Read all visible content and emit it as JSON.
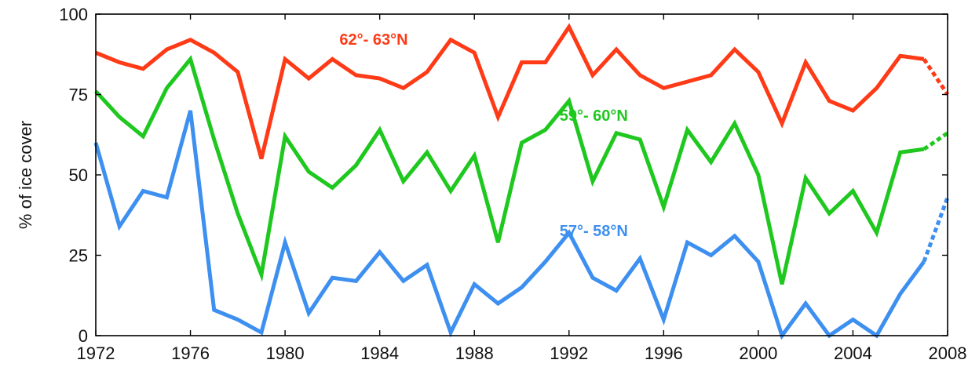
{
  "chart_data": {
    "type": "line",
    "title": "",
    "xlabel": "",
    "ylabel": "% of ice cover",
    "xlim": [
      1972,
      2008
    ],
    "ylim": [
      0,
      100
    ],
    "xticks": [
      1972,
      1976,
      1980,
      1984,
      1988,
      1992,
      1996,
      2000,
      2004,
      2008
    ],
    "yticks": [
      0,
      25,
      50,
      75,
      100
    ],
    "grid": false,
    "legend": "none",
    "series": [
      {
        "name": "62°- 63°N",
        "color": "#ff3a17",
        "x": [
          1972,
          1973,
          1974,
          1975,
          1976,
          1977,
          1978,
          1979,
          1980,
          1981,
          1982,
          1983,
          1984,
          1985,
          1986,
          1987,
          1988,
          1989,
          1990,
          1991,
          1992,
          1993,
          1994,
          1995,
          1996,
          1997,
          1998,
          1999,
          2000,
          2001,
          2002,
          2003,
          2004,
          2005,
          2006,
          2007
        ],
        "values": [
          88,
          85,
          83,
          89,
          92,
          88,
          82,
          55,
          86,
          80,
          86,
          81,
          80,
          77,
          82,
          92,
          88,
          68,
          85,
          85,
          96,
          81,
          89,
          81,
          77,
          79,
          81,
          89,
          82,
          66,
          85,
          73,
          70,
          77,
          87,
          86
        ],
        "projected_x": [
          2007,
          2008
        ],
        "projected_values": [
          86,
          75
        ]
      },
      {
        "name": "59°- 60°N",
        "color": "#1ec81e",
        "x": [
          1972,
          1973,
          1974,
          1975,
          1976,
          1977,
          1978,
          1979,
          1980,
          1981,
          1982,
          1983,
          1984,
          1985,
          1986,
          1987,
          1988,
          1989,
          1990,
          1991,
          1992,
          1993,
          1994,
          1995,
          1996,
          1997,
          1998,
          1999,
          2000,
          2001,
          2002,
          2003,
          2004,
          2005,
          2006,
          2007
        ],
        "values": [
          76,
          68,
          62,
          77,
          86,
          61,
          38,
          19,
          62,
          51,
          46,
          53,
          64,
          48,
          57,
          45,
          56,
          29,
          60,
          64,
          73,
          48,
          63,
          61,
          40,
          64,
          54,
          66,
          50,
          16,
          49,
          38,
          45,
          32,
          57,
          58
        ],
        "projected_x": [
          2007,
          2008
        ],
        "projected_values": [
          58,
          63
        ]
      },
      {
        "name": "57°- 58°N",
        "color": "#3d8ff0",
        "x": [
          1972,
          1973,
          1974,
          1975,
          1976,
          1977,
          1978,
          1979,
          1980,
          1981,
          1982,
          1983,
          1984,
          1985,
          1986,
          1987,
          1988,
          1989,
          1990,
          1991,
          1992,
          1993,
          1994,
          1995,
          1996,
          1997,
          1998,
          1999,
          2000,
          2001,
          2002,
          2003,
          2004,
          2005,
          2006,
          2007
        ],
        "values": [
          60,
          34,
          45,
          43,
          70,
          8,
          5,
          1,
          29,
          7,
          18,
          17,
          26,
          17,
          22,
          1,
          16,
          10,
          15,
          23,
          32,
          18,
          14,
          24,
          5,
          29,
          25,
          31,
          23,
          0,
          10,
          0,
          5,
          0,
          13,
          23
        ],
        "projected_x": [
          2007,
          2008
        ],
        "projected_values": [
          23,
          43
        ]
      }
    ]
  }
}
